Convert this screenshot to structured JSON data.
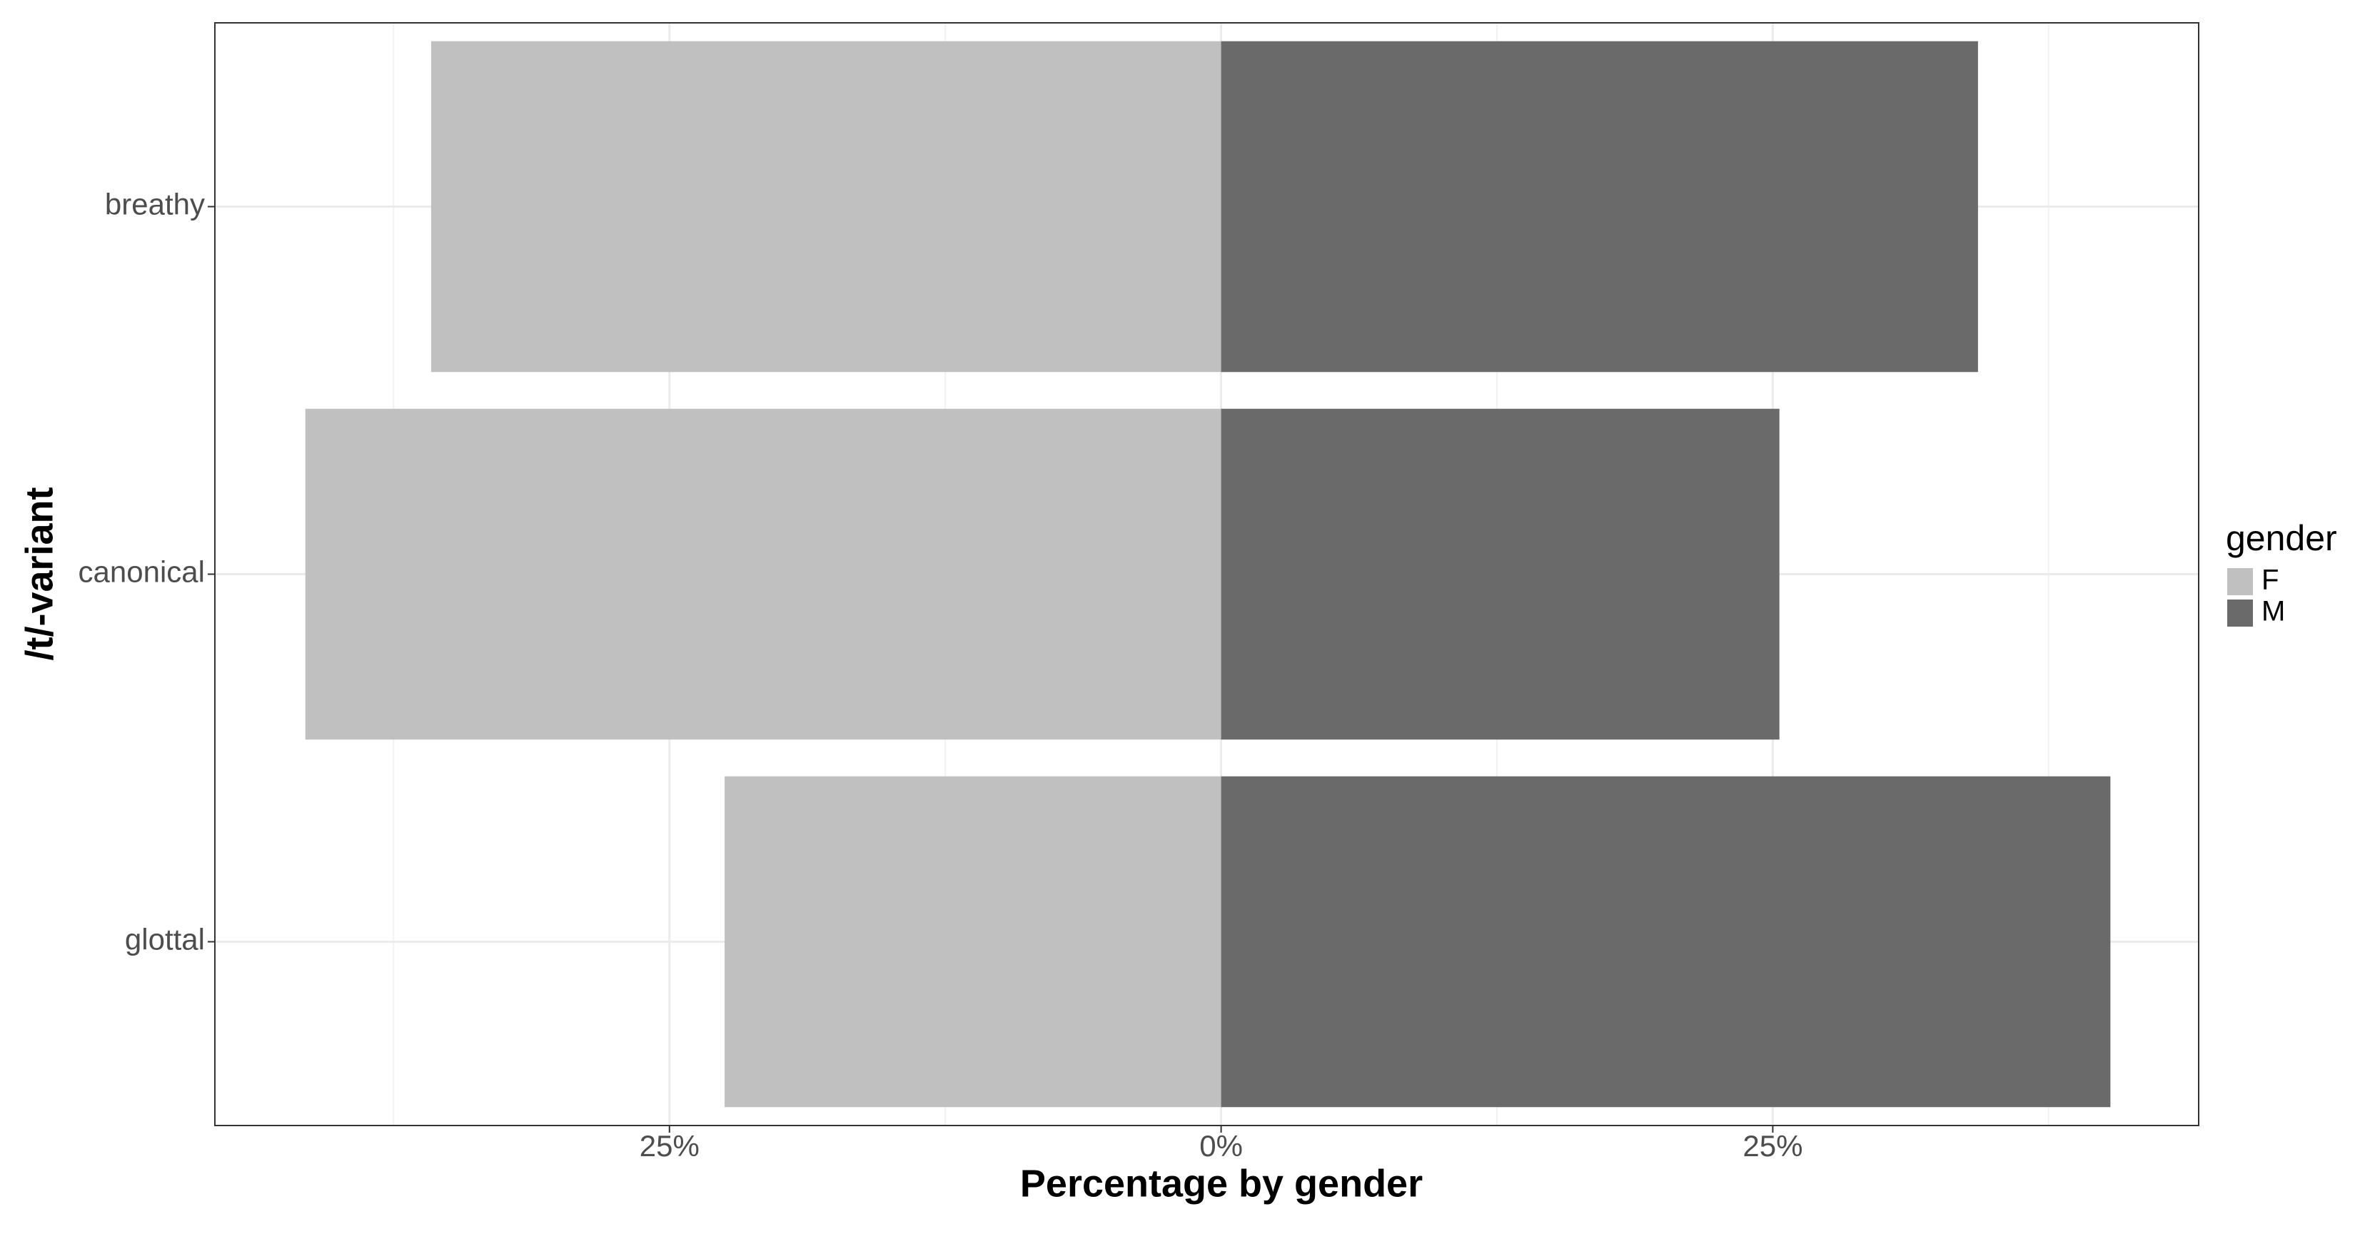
{
  "chart_data": {
    "type": "bar",
    "orientation": "horizontal",
    "x_label": "Percentage by gender",
    "y_label": "/t/-variant",
    "categories": [
      "breathy",
      "canonical",
      "glottal"
    ],
    "series": [
      {
        "name": "F",
        "color": "#c0c0c0",
        "values": [
          -35.8,
          -41.5,
          -22.5
        ]
      },
      {
        "name": "M",
        "color": "#6a6a6a",
        "values": [
          34.3,
          25.3,
          40.3
        ]
      }
    ],
    "legend_title": "gender",
    "legend": "right",
    "xlim": [
      -45.6,
      44.3
    ],
    "xticks": [
      {
        "value": -25,
        "label": "25%"
      },
      {
        "value": 0,
        "label": "0%"
      },
      {
        "value": 25,
        "label": "25%"
      }
    ],
    "xminor": [
      -37.5,
      -12.5,
      12.5,
      37.5
    ],
    "grid": true
  }
}
